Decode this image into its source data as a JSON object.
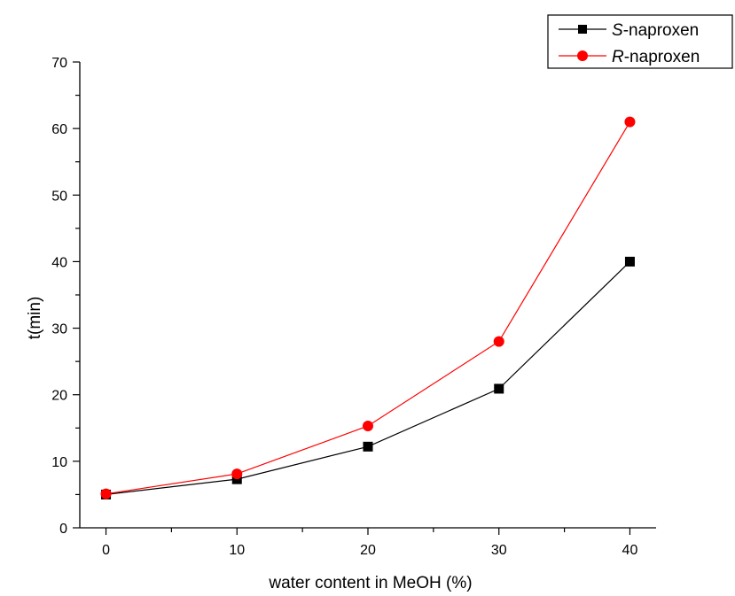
{
  "chart_data": {
    "type": "line",
    "title": "",
    "xlabel": "water content in MeOH (%)",
    "ylabel": "t(min)",
    "xlim": [
      -2,
      42
    ],
    "ylim": [
      0,
      70
    ],
    "x_ticks": [
      "0",
      "10",
      "20",
      "30",
      "40"
    ],
    "y_ticks": [
      "0",
      "10",
      "20",
      "30",
      "40",
      "50",
      "60",
      "70"
    ],
    "grid": false,
    "legend_position": "top-right",
    "x": [
      0,
      10,
      20,
      30,
      40
    ],
    "series": [
      {
        "name_prefix": "S",
        "name_suffix": "-naproxen",
        "values": [
          5.0,
          7.3,
          12.2,
          20.9,
          40.0
        ],
        "color": "#000000",
        "marker": "square"
      },
      {
        "name_prefix": "R",
        "name_suffix": "-naproxen",
        "values": [
          5.1,
          8.1,
          15.3,
          28.0,
          61.0
        ],
        "color": "#ff0000",
        "marker": "circle"
      }
    ]
  }
}
